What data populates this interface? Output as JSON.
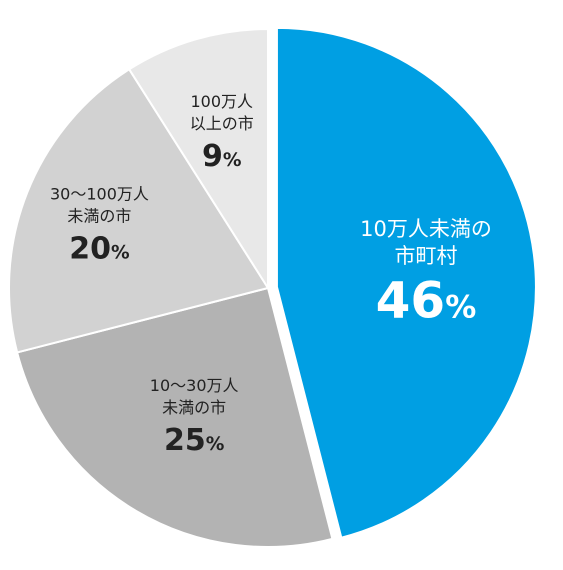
{
  "chart_data": {
    "type": "pie",
    "start_angle_deg": 0,
    "direction": "clockwise",
    "slices": [
      {
        "label_lines": [
          "10万人未満の",
          "市町村"
        ],
        "value": 46,
        "display": "46",
        "unit": "%",
        "color": "#009fe3",
        "highlight": true
      },
      {
        "label_lines": [
          "10〜30万人",
          "未満の市"
        ],
        "value": 25,
        "display": "25",
        "unit": "%",
        "color": "#b3b3b3",
        "highlight": false
      },
      {
        "label_lines": [
          "30〜100万人",
          "未満の市"
        ],
        "value": 20,
        "display": "20",
        "unit": "%",
        "color": "#d2d2d2",
        "highlight": false
      },
      {
        "label_lines": [
          "100万人",
          "以上の市"
        ],
        "value": 9,
        "display": "9",
        "unit": "%",
        "color": "#e8e8e8",
        "highlight": false
      }
    ]
  }
}
